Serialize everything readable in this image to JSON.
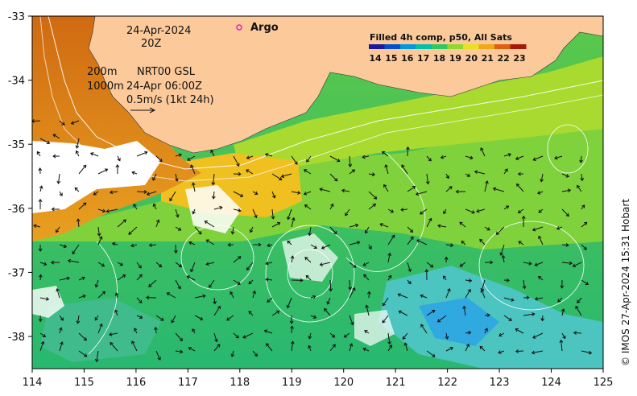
{
  "map": {
    "date_label": "24-Apr-2024",
    "time_label": "20Z",
    "isobath_shallow": "200m",
    "isobath_deep": "1000m",
    "altimetry_label": "NRT00 GSL",
    "altimetry_time": "24-Apr 06:00Z",
    "vector_scale": "0.5m/s (1kt 24h)",
    "argo_label": "Argo",
    "credit": "© IMOS 27-Apr-2024 15:31 Hobart"
  },
  "colorbar": {
    "title": "Filled 4h comp, p50, All Sats",
    "ticks": [
      "14",
      "15",
      "16",
      "17",
      "18",
      "19",
      "20",
      "21",
      "22",
      "23"
    ],
    "colors": [
      "#1a1aa0",
      "#0050d0",
      "#0098e0",
      "#00c0a8",
      "#30c860",
      "#90d830",
      "#e8e020",
      "#f0a818",
      "#e06010",
      "#a81808"
    ]
  },
  "axes": {
    "x_ticks": [
      "114",
      "115",
      "116",
      "117",
      "118",
      "119",
      "120",
      "121",
      "122",
      "123",
      "124",
      "125"
    ],
    "y_ticks": [
      "-33",
      "-34",
      "-35",
      "-36",
      "-37",
      "-38"
    ]
  },
  "colors": {
    "land": "#fbc99a",
    "contour": "#ffffff",
    "argo": "#e020c8"
  }
}
